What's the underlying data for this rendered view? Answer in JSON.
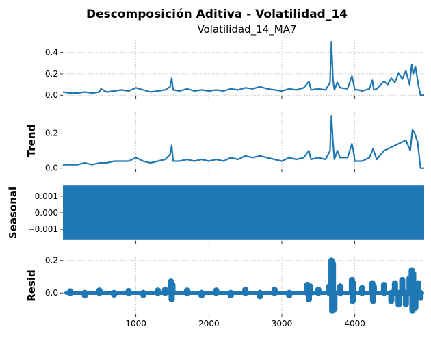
{
  "chart_data": {
    "type": "line",
    "title": "Descomposición Aditiva - Volatilidad_14",
    "color": "#1f77b4",
    "xlim": [
      0,
      4950
    ],
    "xticks": [
      1000,
      2000,
      3000,
      4000
    ],
    "xtick_labels": [
      "1000",
      "2000",
      "3000",
      "4000"
    ],
    "grid": true,
    "panels": [
      {
        "key": "observed",
        "title": "Volatilidad_14_MA7",
        "ylabel": "",
        "ylim": [
          -0.005,
          0.52
        ],
        "yticks": [
          0.0,
          0.2,
          0.4
        ],
        "ytick_labels": [
          "0.0",
          "0.2",
          "0.4"
        ],
        "style": "line",
        "x": [
          0,
          100,
          200,
          300,
          400,
          500,
          520,
          600,
          700,
          800,
          900,
          1000,
          1100,
          1200,
          1300,
          1400,
          1470,
          1490,
          1510,
          1600,
          1700,
          1800,
          1900,
          2000,
          2100,
          2200,
          2300,
          2400,
          2500,
          2600,
          2700,
          2800,
          2900,
          3000,
          3100,
          3200,
          3300,
          3370,
          3400,
          3500,
          3600,
          3660,
          3680,
          3700,
          3720,
          3760,
          3800,
          3900,
          3960,
          3980,
          4000,
          4050,
          4100,
          4200,
          4240,
          4260,
          4300,
          4400,
          4450,
          4500,
          4550,
          4600,
          4650,
          4700,
          4750,
          4780,
          4800,
          4830,
          4870,
          4900,
          4950
        ],
        "y": [
          0.03,
          0.02,
          0.02,
          0.03,
          0.02,
          0.03,
          0.06,
          0.03,
          0.04,
          0.05,
          0.04,
          0.07,
          0.05,
          0.03,
          0.04,
          0.05,
          0.08,
          0.16,
          0.05,
          0.04,
          0.06,
          0.04,
          0.05,
          0.04,
          0.05,
          0.04,
          0.06,
          0.05,
          0.07,
          0.06,
          0.08,
          0.06,
          0.05,
          0.04,
          0.06,
          0.05,
          0.07,
          0.13,
          0.05,
          0.06,
          0.05,
          0.12,
          0.5,
          0.15,
          0.05,
          0.12,
          0.07,
          0.06,
          0.18,
          0.12,
          0.05,
          0.05,
          0.04,
          0.06,
          0.14,
          0.05,
          0.06,
          0.13,
          0.1,
          0.16,
          0.12,
          0.21,
          0.15,
          0.23,
          0.1,
          0.29,
          0.2,
          0.27,
          0.1,
          0.0,
          0.0
        ]
      },
      {
        "key": "trend",
        "title": "",
        "ylabel": "Trend",
        "ylim": [
          -0.005,
          0.32
        ],
        "yticks": [
          0.0,
          0.2
        ],
        "ytick_labels": [
          "0.0",
          "0.2"
        ],
        "style": "line",
        "x": [
          0,
          100,
          200,
          300,
          400,
          500,
          600,
          700,
          800,
          900,
          1000,
          1100,
          1200,
          1300,
          1400,
          1470,
          1490,
          1510,
          1600,
          1700,
          1800,
          1900,
          2000,
          2100,
          2200,
          2300,
          2400,
          2500,
          2600,
          2700,
          2800,
          2900,
          3000,
          3100,
          3200,
          3300,
          3370,
          3400,
          3500,
          3600,
          3660,
          3680,
          3700,
          3720,
          3760,
          3800,
          3900,
          3960,
          3980,
          4000,
          4100,
          4200,
          4250,
          4300,
          4400,
          4500,
          4600,
          4700,
          4760,
          4790,
          4820,
          4860,
          4900,
          4950
        ],
        "y": [
          0.02,
          0.02,
          0.02,
          0.03,
          0.02,
          0.03,
          0.03,
          0.04,
          0.04,
          0.04,
          0.06,
          0.04,
          0.03,
          0.04,
          0.05,
          0.08,
          0.13,
          0.04,
          0.04,
          0.05,
          0.04,
          0.05,
          0.04,
          0.05,
          0.04,
          0.06,
          0.05,
          0.07,
          0.06,
          0.07,
          0.06,
          0.05,
          0.04,
          0.06,
          0.05,
          0.06,
          0.1,
          0.05,
          0.06,
          0.05,
          0.1,
          0.3,
          0.15,
          0.05,
          0.1,
          0.06,
          0.06,
          0.14,
          0.1,
          0.04,
          0.04,
          0.06,
          0.11,
          0.05,
          0.1,
          0.12,
          0.14,
          0.16,
          0.1,
          0.22,
          0.2,
          0.15,
          0.0,
          0.0
        ]
      },
      {
        "key": "seasonal",
        "title": "",
        "ylabel": "Seasonal",
        "ylim": [
          -0.0017,
          0.0017
        ],
        "yticks": [
          -0.001,
          0.0,
          0.001
        ],
        "ytick_labels": [
          "−0.001",
          "0.000",
          "0.001"
        ],
        "style": "band",
        "band": [
          -0.00165,
          0.00165
        ]
      },
      {
        "key": "resid",
        "title": "",
        "ylabel": "Resid",
        "ylim": [
          -0.13,
          0.22
        ],
        "yticks": [
          0.0,
          0.2
        ],
        "ytick_labels": [
          "0.0",
          "0.2"
        ],
        "style": "scatter",
        "x": [
          100,
          300,
          500,
          700,
          900,
          1100,
          1300,
          1400,
          1480,
          1490,
          1500,
          1700,
          1900,
          2100,
          2300,
          2500,
          2700,
          2900,
          3100,
          3350,
          3370,
          3390,
          3500,
          3650,
          3680,
          3690,
          3700,
          3720,
          3800,
          3960,
          3970,
          3980,
          4100,
          4240,
          4250,
          4260,
          4400,
          4500,
          4550,
          4600,
          4650,
          4700,
          4750,
          4780,
          4790,
          4800,
          4830,
          4870,
          4900
        ],
        "y": [
          0.01,
          -0.015,
          0.015,
          -0.01,
          0.012,
          -0.012,
          0.015,
          0.02,
          0.07,
          -0.04,
          0.05,
          0.015,
          -0.015,
          0.015,
          -0.015,
          0.02,
          -0.02,
          0.02,
          -0.015,
          0.05,
          -0.04,
          0.04,
          0.02,
          0.04,
          0.2,
          -0.11,
          0.18,
          -0.1,
          0.04,
          0.08,
          -0.05,
          0.06,
          0.03,
          0.06,
          -0.05,
          0.04,
          0.05,
          -0.05,
          0.06,
          -0.07,
          0.08,
          -0.07,
          0.09,
          0.14,
          -0.11,
          0.12,
          -0.09,
          0.06,
          -0.03
        ]
      }
    ]
  }
}
